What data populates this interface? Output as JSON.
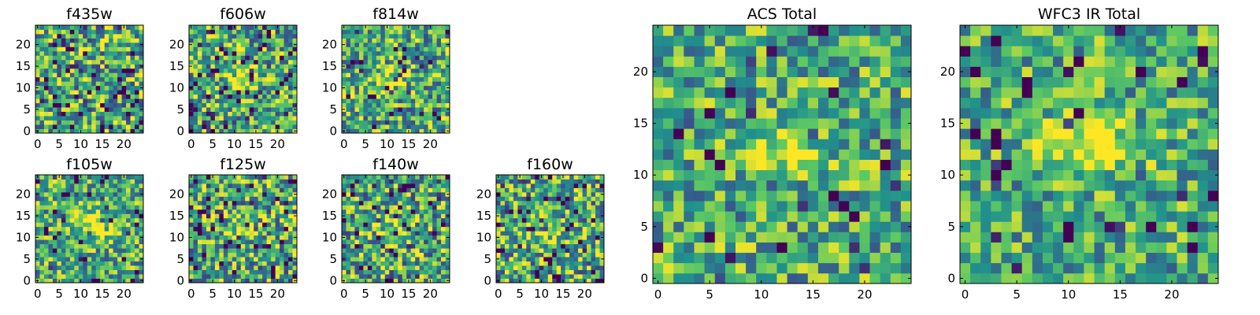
{
  "chart_data": [
    {
      "type": "heatmap",
      "title": "f435w",
      "grid": [
        25,
        25
      ],
      "xticks": [
        0,
        5,
        10,
        15,
        20
      ],
      "yticks": [
        0,
        5,
        10,
        15,
        20
      ],
      "colormap": "viridis",
      "blob": null,
      "seed": 11,
      "noise": 0.85,
      "dark_fraction": 0.12
    },
    {
      "type": "heatmap",
      "title": "f606w",
      "grid": [
        25,
        25
      ],
      "xticks": [
        0,
        5,
        10,
        15,
        20
      ],
      "yticks": [
        0,
        5,
        10,
        15,
        20
      ],
      "colormap": "viridis",
      "blob": {
        "cx": 12,
        "cy": 12,
        "sx": 2.5,
        "sy": 2.0,
        "amp": 0.35
      },
      "seed": 23,
      "noise": 0.8,
      "dark_fraction": 0.1
    },
    {
      "type": "heatmap",
      "title": "f814w",
      "grid": [
        25,
        25
      ],
      "xticks": [
        0,
        5,
        10,
        15,
        20
      ],
      "yticks": [
        0,
        5,
        10,
        15,
        20
      ],
      "colormap": "viridis",
      "blob": {
        "cx": 10,
        "cy": 12,
        "sx": 3.0,
        "sy": 1.5,
        "amp": 0.35
      },
      "seed": 37,
      "noise": 0.8,
      "dark_fraction": 0.1
    },
    {
      "type": "heatmap",
      "title": "f105w",
      "grid": [
        25,
        25
      ],
      "xticks": [
        0,
        5,
        10,
        15,
        20
      ],
      "yticks": [
        0,
        5,
        10,
        15,
        20
      ],
      "colormap": "viridis",
      "blob": {
        "cx": 13,
        "cy": 13,
        "sx": 3.0,
        "sy": 2.0,
        "amp": 0.4
      },
      "seed": 41,
      "noise": 0.75,
      "dark_fraction": 0.08
    },
    {
      "type": "heatmap",
      "title": "f125w",
      "grid": [
        25,
        25
      ],
      "xticks": [
        0,
        5,
        10,
        15,
        20
      ],
      "yticks": [
        0,
        5,
        10,
        15,
        20
      ],
      "colormap": "viridis",
      "blob": {
        "cx": 12,
        "cy": 12,
        "sx": 2.5,
        "sy": 2.0,
        "amp": 0.3
      },
      "seed": 53,
      "noise": 0.85,
      "dark_fraction": 0.14
    },
    {
      "type": "heatmap",
      "title": "f140w",
      "grid": [
        25,
        25
      ],
      "xticks": [
        0,
        5,
        10,
        15,
        20
      ],
      "yticks": [
        0,
        5,
        10,
        15,
        20
      ],
      "colormap": "viridis",
      "blob": {
        "cx": 12,
        "cy": 12,
        "sx": 2.5,
        "sy": 2.0,
        "amp": 0.3
      },
      "seed": 67,
      "noise": 0.85,
      "dark_fraction": 0.14
    },
    {
      "type": "heatmap",
      "title": "f160w",
      "grid": [
        25,
        25
      ],
      "xticks": [
        0,
        5,
        10,
        15,
        20
      ],
      "yticks": [
        0,
        5,
        10,
        15,
        20
      ],
      "colormap": "viridis",
      "blob": {
        "cx": 11,
        "cy": 11,
        "sx": 3.0,
        "sy": 2.0,
        "amp": 0.35
      },
      "seed": 79,
      "noise": 0.85,
      "dark_fraction": 0.14
    },
    {
      "type": "heatmap",
      "title": "ACS Total",
      "grid": [
        25,
        25
      ],
      "xticks": [
        0,
        5,
        10,
        15,
        20
      ],
      "yticks": [
        0,
        5,
        10,
        15,
        20
      ],
      "colormap": "viridis",
      "blob": {
        "cx": 12,
        "cy": 12,
        "sx": 3.0,
        "sy": 1.3,
        "amp": 0.45
      },
      "seed": 97,
      "noise": 0.7,
      "dark_fraction": 0.06
    },
    {
      "type": "heatmap",
      "title": "WFC3 IR Total",
      "grid": [
        25,
        25
      ],
      "xticks": [
        0,
        5,
        10,
        15,
        20
      ],
      "yticks": [
        0,
        5,
        10,
        15,
        20
      ],
      "colormap": "viridis",
      "blob": {
        "cx": 12,
        "cy": 13,
        "sx": 3.5,
        "sy": 1.6,
        "amp": 0.45
      },
      "seed": 113,
      "noise": 0.65,
      "dark_fraction": 0.07
    }
  ],
  "colors": {
    "viridis_stops": [
      "#440154",
      "#3b528b",
      "#21918c",
      "#5ec962",
      "#fde725"
    ]
  }
}
